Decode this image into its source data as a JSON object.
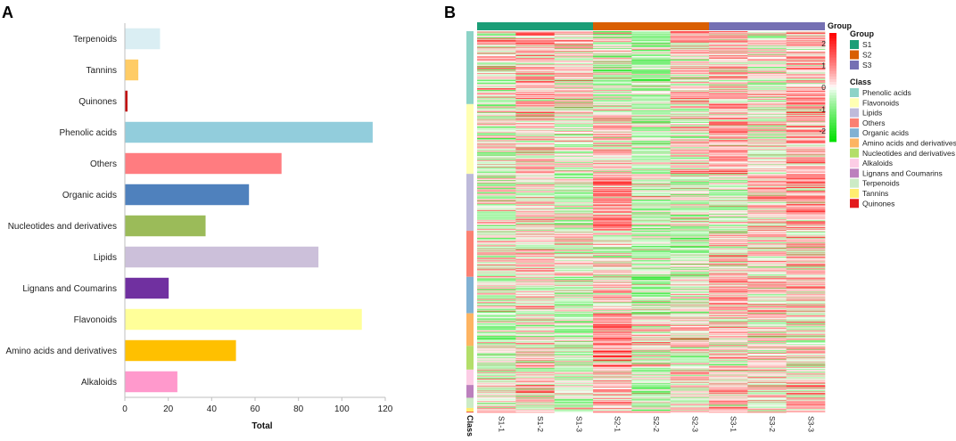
{
  "panels": {
    "left_label": "A",
    "right_label": "B"
  },
  "chart_data": [
    {
      "type": "bar",
      "orientation": "horizontal",
      "categories": [
        "Terpenoids",
        "Tannins",
        "Quinones",
        "Phenolic acids",
        "Others",
        "Organic acids",
        "Nucleotides and derivatives",
        "Lipids",
        "Lignans and Coumarins",
        "Flavonoids",
        "Amino acids and derivatives",
        "Alkaloids"
      ],
      "values": [
        16,
        6,
        1,
        114,
        72,
        57,
        37,
        89,
        20,
        109,
        51,
        24
      ],
      "colors": [
        "#daeef3",
        "#ffcc66",
        "#c00000",
        "#92cddc",
        "#ff7c80",
        "#4f81bd",
        "#9bbb59",
        "#ccc0da",
        "#7030a0",
        "#ffff99",
        "#ffc000",
        "#ff99cc"
      ],
      "xlabel": "Total",
      "xlim": [
        0,
        120
      ],
      "xticks": [
        0,
        20,
        40,
        60,
        80,
        100,
        120
      ]
    },
    {
      "type": "heatmap",
      "columns": [
        "S1-1",
        "S1-2",
        "S1-3",
        "S2-1",
        "S2-2",
        "S2-3",
        "S3-1",
        "S3-2",
        "S3-3"
      ],
      "groups": [
        {
          "name": "S1",
          "color": "#1b9e77"
        },
        {
          "name": "S2",
          "color": "#d95f02"
        },
        {
          "name": "S3",
          "color": "#7570b3"
        }
      ],
      "group_legend_title": "Group",
      "group_bar_label": "Group",
      "class_legend_title": "Class",
      "row_annotation_label": "Class",
      "color_scale": {
        "min": -2.5,
        "max": 2.5,
        "ticks": [
          2,
          1,
          0,
          -1,
          -2
        ],
        "low": "#00e000",
        "mid": "#ffffff",
        "high": "#ff0000"
      },
      "classes": [
        {
          "name": "Phenolic acids",
          "color": "#8dd3c7",
          "count": 114
        },
        {
          "name": "Flavonoids",
          "color": "#ffffb3",
          "count": 109
        },
        {
          "name": "Lipids",
          "color": "#bebada",
          "count": 89
        },
        {
          "name": "Others",
          "color": "#fb8072",
          "count": 72
        },
        {
          "name": "Organic acids",
          "color": "#80b1d3",
          "count": 57
        },
        {
          "name": "Amino acids and derivatives",
          "color": "#fdb462",
          "count": 51
        },
        {
          "name": "Nucleotides and derivatives",
          "color": "#b3de69",
          "count": 37
        },
        {
          "name": "Alkaloids",
          "color": "#fccde5",
          "count": 24
        },
        {
          "name": "Lignans and Coumarins",
          "color": "#bc80bd",
          "count": 20
        },
        {
          "name": "Terpenoids",
          "color": "#ccebc5",
          "count": 16
        },
        {
          "name": "Tannins",
          "color": "#ffed6f",
          "count": 6
        },
        {
          "name": "Quinones",
          "color": "#e31a1c",
          "count": 1
        }
      ]
    }
  ]
}
